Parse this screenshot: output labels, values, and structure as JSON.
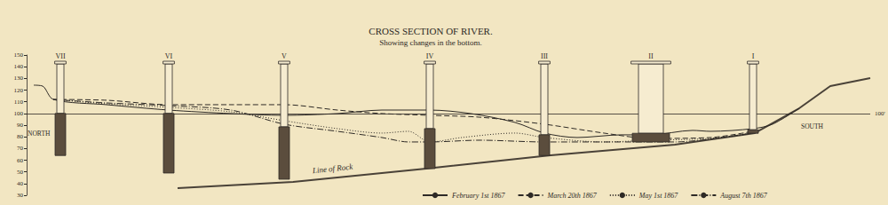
{
  "chart_data": {
    "type": "line",
    "title": "CROSS SECTION OF RIVER.",
    "subtitle": "Showing changes in the bottom.",
    "ylim": [
      30,
      150
    ],
    "yticks": [
      30,
      40,
      50,
      60,
      70,
      80,
      90,
      100,
      110,
      120,
      130,
      140,
      150
    ],
    "xlim": [
      30,
      980
    ],
    "tick_labels": "y",
    "grid": false,
    "legend": "bottom right",
    "datum": {
      "value": 100,
      "label": "100'"
    },
    "annotations": [
      "NORTH",
      "SOUTH"
    ],
    "rock": {
      "label": "Line of Rock",
      "color": "#4a4238",
      "x": [
        200,
        330,
        480,
        620,
        760,
        850,
        900,
        935,
        980
      ],
      "values": [
        36.1,
        41.4,
        52.8,
        64.2,
        73.3,
        83.2,
        104.4,
        123.4,
        130.3
      ]
    },
    "piers": [
      {
        "label": "VII",
        "x": 68,
        "top": 142.4,
        "foundation_top": 100,
        "bottom": 64,
        "width": 8
      },
      {
        "label": "VI",
        "x": 190,
        "top": 142.4,
        "foundation_top": 100,
        "bottom": 49,
        "width": 8
      },
      {
        "label": "V",
        "x": 320,
        "top": 142.4,
        "foundation_top": 88.5,
        "bottom": 43.7,
        "width": 8
      },
      {
        "label": "IV",
        "x": 484,
        "top": 142.4,
        "foundation_top": 87,
        "bottom": 52.8,
        "width": 8
      },
      {
        "label": "III",
        "x": 613,
        "top": 142.4,
        "foundation_top": 81.7,
        "bottom": 64,
        "width": 8
      },
      {
        "label": "II",
        "x": 733,
        "top": 142.4,
        "foundation_top": 83,
        "bottom": 75.6,
        "width": 28
      },
      {
        "label": "I",
        "x": 848,
        "top": 142.4,
        "foundation_top": 86,
        "bottom": 83,
        "width": 8
      }
    ],
    "series": [
      {
        "name": "February 1st 1867",
        "color": "#2e2a26",
        "line_style": "solid",
        "x": [
          38,
          48,
          60,
          120,
          190,
          260,
          320,
          380,
          430,
          484,
          530,
          580,
          613,
          650,
          700,
          733,
          780,
          800,
          848,
          870,
          900
        ],
        "values": [
          124.2,
          123.4,
          112.0,
          107.5,
          102.9,
          99.9,
          98.4,
          99.9,
          102.9,
          102.9,
          99.9,
          92.3,
          83.2,
          79.4,
          81.7,
          81.7,
          85.5,
          84.7,
          87.0,
          90.8,
          104.4
        ]
      },
      {
        "name": "March 20th 1867",
        "color": "#2e2a26",
        "line_style": "dashed",
        "x": [
          60,
          120,
          190,
          260,
          320,
          380,
          430,
          484,
          540,
          613,
          680,
          733,
          800,
          848
        ],
        "values": [
          112.0,
          111.3,
          107.5,
          107.5,
          107.5,
          102.9,
          99.9,
          98.4,
          96.8,
          90.8,
          83.2,
          78.6,
          79.4,
          84.7
        ]
      },
      {
        "name": "May 1st 1867",
        "color": "#2e2a26",
        "line_style": "dotted",
        "x": [
          60,
          120,
          190,
          260,
          320,
          380,
          430,
          460,
          484,
          520,
          580,
          613,
          680,
          733,
          800,
          848
        ],
        "values": [
          112.0,
          108.2,
          105.2,
          101.4,
          93.8,
          87.0,
          83.2,
          84.7,
          75.6,
          79.4,
          83.2,
          79.4,
          75.6,
          77.1,
          78.6,
          83.2
        ]
      },
      {
        "name": "August 7th 1867",
        "color": "#2e2a26",
        "line_style": "dashdot",
        "x": [
          60,
          120,
          190,
          260,
          320,
          380,
          430,
          460,
          484,
          540,
          613,
          700,
          760,
          848
        ],
        "values": [
          112.0,
          109.0,
          106.7,
          102.9,
          90.8,
          84.7,
          79.4,
          75.6,
          75.6,
          77.1,
          75.6,
          75.6,
          75.6,
          83.2
        ]
      }
    ]
  }
}
